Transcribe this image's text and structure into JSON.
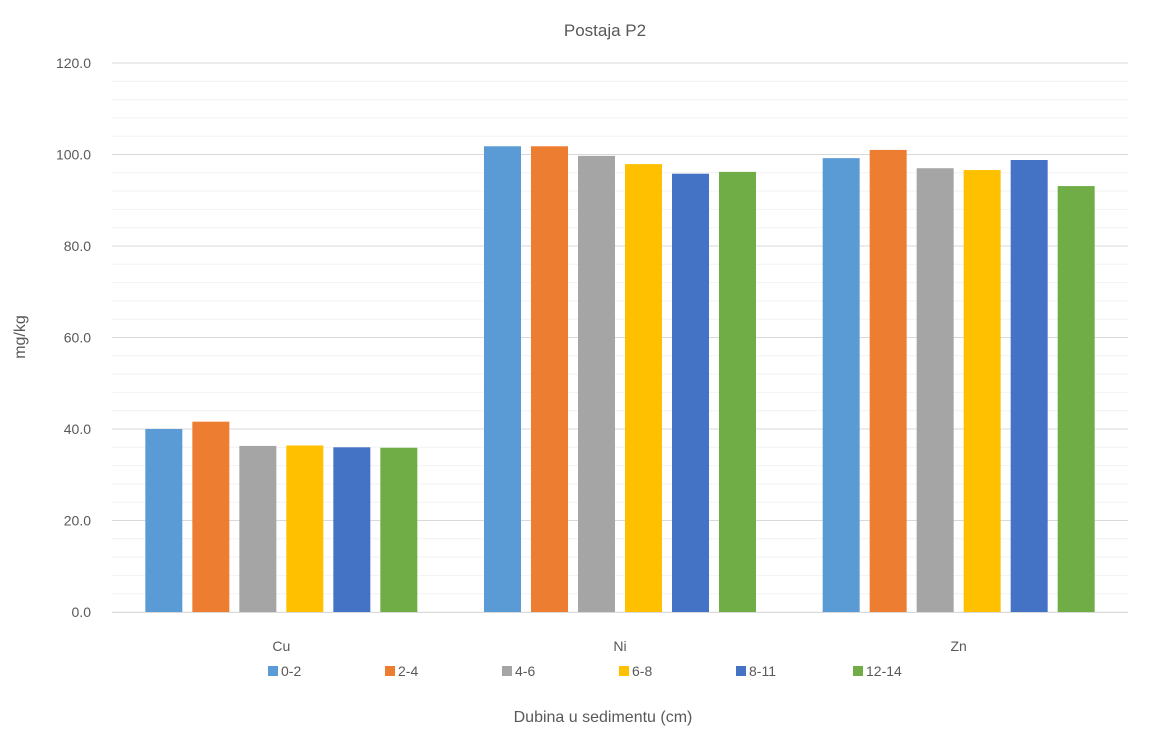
{
  "chart_data": {
    "type": "bar",
    "title": "Postaja P2",
    "xlabel": "Dubina u sedimentu (cm)",
    "ylabel": "mg/kg",
    "ylim": [
      0,
      120
    ],
    "y_major_step": 20,
    "y_minor_step": 4,
    "y_tick_format_decimals": 1,
    "grid": true,
    "legend_position": "bottom",
    "categories": [
      "Cu",
      "Ni",
      "Zn"
    ],
    "series": [
      {
        "name": "0-2",
        "color": "#5B9BD5",
        "values": [
          40.0,
          101.8,
          99.2
        ]
      },
      {
        "name": "2-4",
        "color": "#ED7D31",
        "values": [
          41.6,
          101.8,
          101.0
        ]
      },
      {
        "name": "4-6",
        "color": "#A5A5A5",
        "values": [
          36.3,
          99.7,
          97.0
        ]
      },
      {
        "name": "6-8",
        "color": "#FFC000",
        "values": [
          36.4,
          97.9,
          96.6
        ]
      },
      {
        "name": "8-11",
        "color": "#4472C4",
        "values": [
          36.0,
          95.8,
          98.8
        ]
      },
      {
        "name": "12-14",
        "color": "#70AD47",
        "values": [
          35.9,
          96.2,
          93.1
        ]
      }
    ]
  }
}
